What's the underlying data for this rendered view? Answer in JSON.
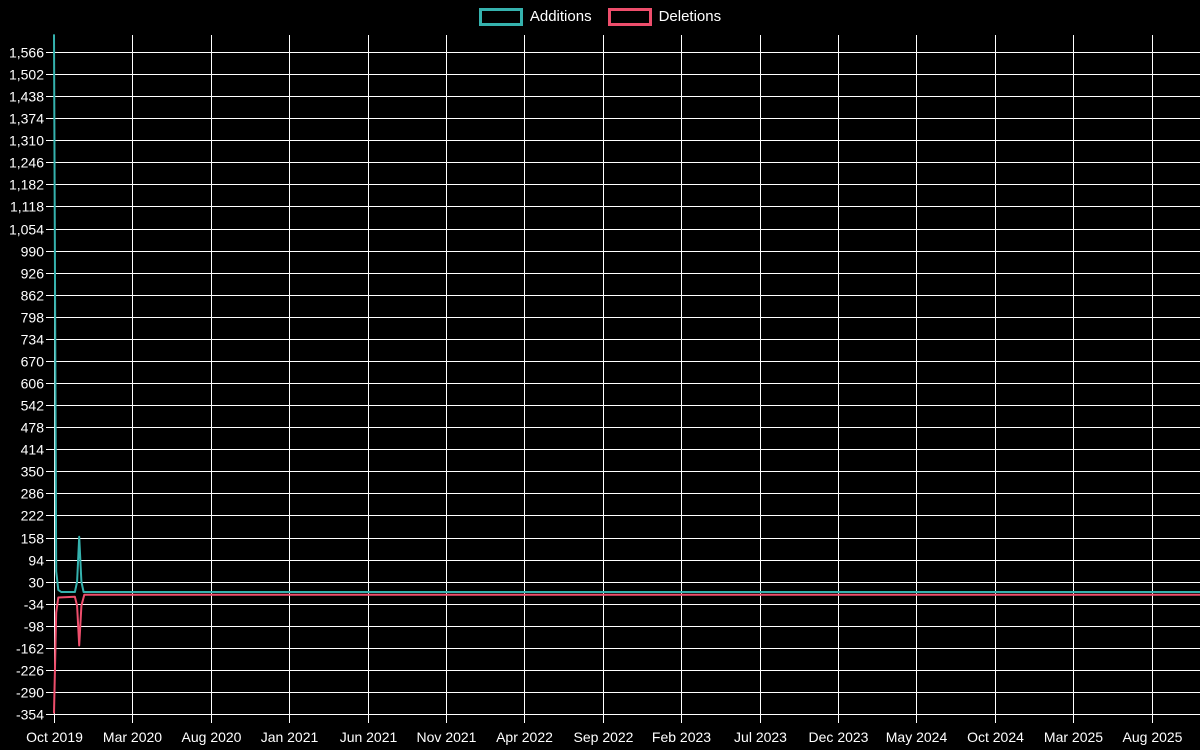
{
  "colors": {
    "background": "#000000",
    "grid": "#ffffff",
    "axis_text": "#ffffff",
    "additions": "#35b2ae",
    "deletions": "#ee4e6c"
  },
  "chart_data": {
    "type": "line",
    "legend_position": "top",
    "grid": true,
    "legend": [
      {
        "label": "Additions",
        "color": "#35b2ae"
      },
      {
        "label": "Deletions",
        "color": "#ee4e6c"
      }
    ],
    "x_tick_labels": [
      "Oct 2019",
      "Mar 2020",
      "Aug 2020",
      "Jan 2021",
      "Jun 2021",
      "Nov 2021",
      "Apr 2022",
      "Sep 2022",
      "Feb 2023",
      "Jul 2023",
      "Dec 2023",
      "May 2024",
      "Oct 2024",
      "Mar 2025",
      "Aug 2025"
    ],
    "x_axis": {
      "months_per_tick": 5,
      "start": "Oct 2019",
      "end": "Aug 2025"
    },
    "y_axis": {
      "min": -354,
      "max": 1566,
      "step": 64
    },
    "y_tick_labels": [
      "1,566",
      "1,502",
      "1,438",
      "1,374",
      "1,310",
      "1,246",
      "1,182",
      "1,118",
      "1,054",
      "990",
      "926",
      "862",
      "798",
      "734",
      "670",
      "606",
      "542",
      "478",
      "414",
      "350",
      "286",
      "222",
      "158",
      "94",
      "30",
      "-34",
      "-98",
      "-162",
      "-226",
      "-290",
      "-354"
    ],
    "series": [
      {
        "name": "Additions",
        "color": "#35b2ae",
        "points_weeks_value": [
          [
            0,
            1615
          ],
          [
            0.6,
            60
          ],
          [
            1.2,
            6
          ],
          [
            2,
            0
          ],
          [
            5.8,
            0
          ],
          [
            6.4,
            30
          ],
          [
            7,
            160
          ],
          [
            7.6,
            30
          ],
          [
            8.2,
            0
          ],
          [
            318,
            0
          ]
        ]
      },
      {
        "name": "Deletions",
        "color": "#ee4e6c",
        "points_weeks_value": [
          [
            0,
            -350
          ],
          [
            0.6,
            -60
          ],
          [
            1.2,
            -16
          ],
          [
            5.8,
            -14
          ],
          [
            6.4,
            -40
          ],
          [
            7,
            -155
          ],
          [
            7.6,
            -40
          ],
          [
            8.4,
            -8
          ],
          [
            318,
            -8
          ]
        ]
      }
    ]
  }
}
